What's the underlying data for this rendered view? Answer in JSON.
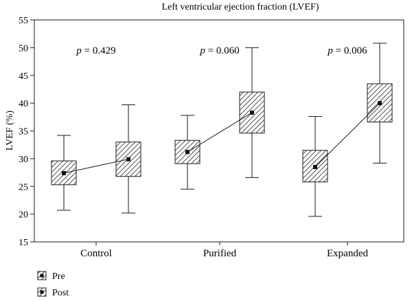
{
  "chart_data": {
    "type": "box",
    "title": "Left ventricular ejection fraction (LVEF)",
    "ylabel": "LVEF (%)",
    "ylim": [
      15,
      55
    ],
    "yticks": [
      15,
      20,
      25,
      30,
      35,
      40,
      45,
      50,
      55
    ],
    "categories": [
      "Control",
      "Purified",
      "Expanded"
    ],
    "series": [
      {
        "name": "Pre",
        "boxes": [
          {
            "min": 20.7,
            "q1": 25.3,
            "median": 27.4,
            "q3": 29.6,
            "max": 34.2
          },
          {
            "min": 24.5,
            "q1": 29.1,
            "median": 31.2,
            "q3": 33.3,
            "max": 37.8
          },
          {
            "min": 19.6,
            "q1": 25.8,
            "median": 28.5,
            "q3": 31.5,
            "max": 37.6
          }
        ]
      },
      {
        "name": "Post",
        "boxes": [
          {
            "min": 20.2,
            "q1": 26.8,
            "median": 29.9,
            "q3": 33.0,
            "max": 39.7
          },
          {
            "min": 26.6,
            "q1": 34.6,
            "median": 38.3,
            "q3": 42.0,
            "max": 50.0
          },
          {
            "min": 29.2,
            "q1": 36.6,
            "median": 40.0,
            "q3": 43.5,
            "max": 50.8
          }
        ]
      }
    ],
    "annotations": [
      {
        "prefix": "p",
        "text": " = 0.429"
      },
      {
        "prefix": "p",
        "text": " = 0.060"
      },
      {
        "prefix": "p",
        "text": " = 0.006"
      }
    ],
    "legend": [
      "Pre",
      "Post"
    ],
    "legend_position": "bottom-left",
    "grid": false
  }
}
